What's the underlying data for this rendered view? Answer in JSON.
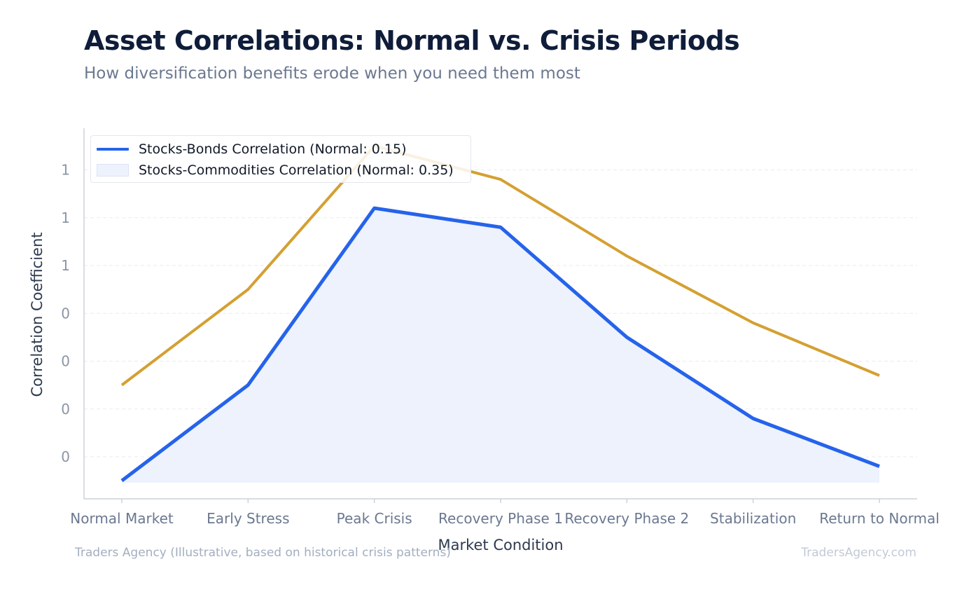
{
  "header": {
    "title": "Asset Correlations: Normal vs. Crisis Periods",
    "subtitle": "How diversification benefits erode when you need them most"
  },
  "footer": {
    "source": "Traders Agency (Illustrative, based on historical crisis patterns)",
    "site": "TradersAgency.com"
  },
  "colors": {
    "bonds": "#2563eb",
    "commodities": "#d4a032",
    "fill": "#eef2fd"
  },
  "chart_data": {
    "type": "line",
    "xlabel": "Market Condition",
    "ylabel": "Correlation Coefficient",
    "categories": [
      "Normal Market",
      "Early Stress",
      "Peak Crisis",
      "Recovery Phase 1",
      "Recovery Phase 2",
      "Stabilization",
      "Return to Normal"
    ],
    "ytick_labels": [
      "0",
      "0",
      "0",
      "0",
      "1",
      "1",
      "1"
    ],
    "ytick_values": [
      0.2,
      0.3,
      0.4,
      0.5,
      0.6,
      0.7,
      0.8
    ],
    "ylim": [
      0.15,
      0.9
    ],
    "grid": true,
    "legend_position": "top-left",
    "series": [
      {
        "name": "Stocks-Bonds Correlation (Normal: 0.15)",
        "style": "line-with-area",
        "values": [
          0.15,
          0.35,
          0.72,
          0.68,
          0.45,
          0.28,
          0.18
        ]
      },
      {
        "name": "Stocks-Commodities Correlation (Normal: 0.35)",
        "style": "line",
        "values": [
          0.35,
          0.55,
          0.85,
          0.78,
          0.62,
          0.48,
          0.37
        ]
      }
    ]
  }
}
